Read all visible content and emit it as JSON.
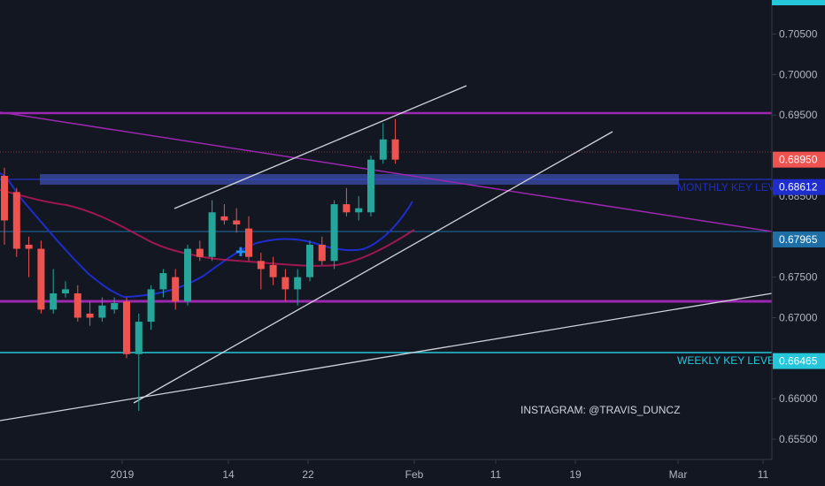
{
  "chart_data": {
    "type": "candlestick",
    "y_range": [
      0.6525,
      0.7092
    ],
    "y_ticks": [
      "0.70500",
      "0.70000",
      "0.69500",
      "0.68500",
      "0.68000",
      "0.67500",
      "0.67000",
      "0.66000",
      "0.65500"
    ],
    "x_labels": [
      "2019",
      "14",
      "22",
      "Feb",
      "11",
      "19",
      "Mar",
      "11"
    ],
    "price_labels": [
      {
        "value": "0.68950",
        "color": "#ef5350"
      },
      {
        "value": "0.68612",
        "color": "#1e2dcc"
      },
      {
        "value": "0.67965",
        "color": "#1e6fa8"
      },
      {
        "value": "0.66465",
        "color": "#26c6da"
      }
    ],
    "annotations": [
      {
        "text": "MONTHLY KEY LEVEL",
        "color": "#1e2dcc"
      },
      {
        "text": "WEEKLY KEY LEVEL",
        "color": "#26c6da"
      },
      {
        "text": "INSTAGRAM: @TRAVIS_DUNCZ",
        "color": "#d1d4dc"
      }
    ],
    "candles": [
      {
        "o": 0.6875,
        "h": 0.6885,
        "l": 0.679,
        "c": 0.682
      },
      {
        "o": 0.6855,
        "h": 0.686,
        "l": 0.6775,
        "c": 0.6785
      },
      {
        "o": 0.679,
        "h": 0.68,
        "l": 0.675,
        "c": 0.6785
      },
      {
        "o": 0.6785,
        "h": 0.6795,
        "l": 0.6705,
        "c": 0.671
      },
      {
        "o": 0.671,
        "h": 0.676,
        "l": 0.6705,
        "c": 0.673
      },
      {
        "o": 0.673,
        "h": 0.6745,
        "l": 0.6725,
        "c": 0.6735
      },
      {
        "o": 0.673,
        "h": 0.674,
        "l": 0.6695,
        "c": 0.67
      },
      {
        "o": 0.6705,
        "h": 0.672,
        "l": 0.669,
        "c": 0.67
      },
      {
        "o": 0.67,
        "h": 0.6725,
        "l": 0.6695,
        "c": 0.6715
      },
      {
        "o": 0.671,
        "h": 0.6725,
        "l": 0.6705,
        "c": 0.6718
      },
      {
        "o": 0.672,
        "h": 0.6725,
        "l": 0.665,
        "c": 0.6655
      },
      {
        "o": 0.6655,
        "h": 0.6705,
        "l": 0.6585,
        "c": 0.6695
      },
      {
        "o": 0.6695,
        "h": 0.674,
        "l": 0.6685,
        "c": 0.6735
      },
      {
        "o": 0.6735,
        "h": 0.676,
        "l": 0.6725,
        "c": 0.6755
      },
      {
        "o": 0.675,
        "h": 0.676,
        "l": 0.671,
        "c": 0.672
      },
      {
        "o": 0.672,
        "h": 0.679,
        "l": 0.6715,
        "c": 0.6785
      },
      {
        "o": 0.6785,
        "h": 0.6795,
        "l": 0.677,
        "c": 0.6775
      },
      {
        "o": 0.6775,
        "h": 0.6845,
        "l": 0.677,
        "c": 0.683
      },
      {
        "o": 0.6825,
        "h": 0.684,
        "l": 0.6815,
        "c": 0.682
      },
      {
        "o": 0.682,
        "h": 0.6835,
        "l": 0.6805,
        "c": 0.6815
      },
      {
        "o": 0.681,
        "h": 0.6825,
        "l": 0.677,
        "c": 0.6775
      },
      {
        "o": 0.677,
        "h": 0.678,
        "l": 0.6735,
        "c": 0.676
      },
      {
        "o": 0.6765,
        "h": 0.6775,
        "l": 0.674,
        "c": 0.675
      },
      {
        "o": 0.675,
        "h": 0.676,
        "l": 0.672,
        "c": 0.6735
      },
      {
        "o": 0.6735,
        "h": 0.676,
        "l": 0.6715,
        "c": 0.675
      },
      {
        "o": 0.675,
        "h": 0.6795,
        "l": 0.6745,
        "c": 0.679
      },
      {
        "o": 0.679,
        "h": 0.68,
        "l": 0.6765,
        "c": 0.677
      },
      {
        "o": 0.677,
        "h": 0.6845,
        "l": 0.676,
        "c": 0.684
      },
      {
        "o": 0.684,
        "h": 0.686,
        "l": 0.6825,
        "c": 0.683
      },
      {
        "o": 0.683,
        "h": 0.685,
        "l": 0.682,
        "c": 0.6835
      },
      {
        "o": 0.683,
        "h": 0.69,
        "l": 0.6825,
        "c": 0.6895
      },
      {
        "o": 0.6895,
        "h": 0.694,
        "l": 0.689,
        "c": 0.692
      },
      {
        "o": 0.692,
        "h": 0.6945,
        "l": 0.689,
        "c": 0.6895
      }
    ]
  }
}
